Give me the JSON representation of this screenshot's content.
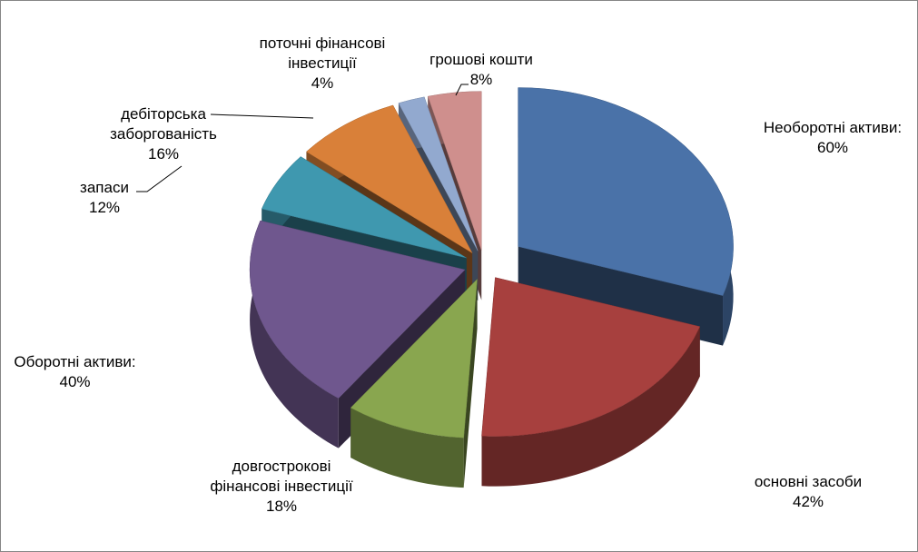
{
  "chart_data": {
    "type": "pie",
    "style": "3d-exploded",
    "legend": "none",
    "slices": [
      {
        "label": "Необоротні активи:",
        "value": 60,
        "value_label": "60%",
        "color": "#4A72A8"
      },
      {
        "label": "основні засоби",
        "value": 42,
        "value_label": "42%",
        "color": "#A7403E"
      },
      {
        "label": "довгострокові фінансові інвестиції",
        "value": 18,
        "value_label": "18%",
        "color": "#89A64F"
      },
      {
        "label": "Оборотні активи:",
        "value": 40,
        "value_label": "40%",
        "color": "#6F578E"
      },
      {
        "label": "запаси",
        "value": 12,
        "value_label": "12%",
        "color": "#3F98AF"
      },
      {
        "label": "дебіторська заборгованість",
        "value": 16,
        "value_label": "16%",
        "color": "#D98039"
      },
      {
        "label": "поточні фінансові інвестиції",
        "value": 4,
        "value_label": "4%",
        "color": "#92A9CF"
      },
      {
        "label": "грошові кошти",
        "value": 8,
        "value_label": "8%",
        "color": "#CF8F8D"
      }
    ],
    "label_lines": {
      "line1": "Необоротні",
      "line1b": "активи:",
      "l2": "основні засоби",
      "l3a": "довгострокові",
      "l3b": "фінансові інвестиції",
      "l4": "Оборотні активи:",
      "l5": "запаси",
      "l6a": "дебіторська",
      "l6b": "заборгованість",
      "l7a": "поточні фінансові",
      "l7b": "інвестиції",
      "l8": "грошові кошти"
    }
  }
}
